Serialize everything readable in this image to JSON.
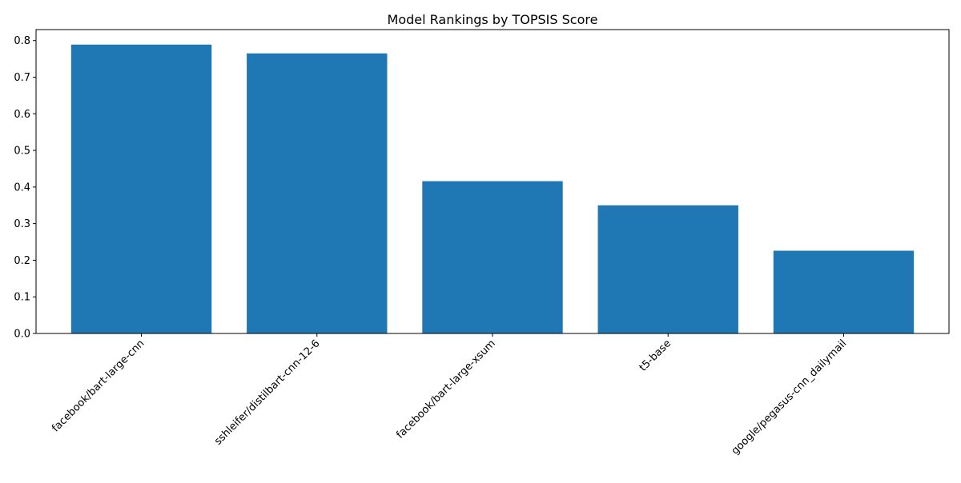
{
  "chart_data": {
    "type": "bar",
    "title": "Model Rankings by TOPSIS Score",
    "xlabel": "",
    "ylabel": "",
    "categories": [
      "facebook/bart-large-cnn",
      "sshleifer/distilbart-cnn-12-6",
      "facebook/bart-large-xsum",
      "t5-base",
      "google/pegasus-cnn_dailymail"
    ],
    "values": [
      0.789,
      0.765,
      0.416,
      0.35,
      0.226
    ],
    "ylim": [
      0,
      0.83
    ],
    "yticks": [
      "0.0",
      "0.1",
      "0.2",
      "0.3",
      "0.4",
      "0.5",
      "0.6",
      "0.7",
      "0.8"
    ],
    "grid": false,
    "legend": "none",
    "colors": {
      "bar": "#1f77b4",
      "axis": "#000000"
    }
  }
}
